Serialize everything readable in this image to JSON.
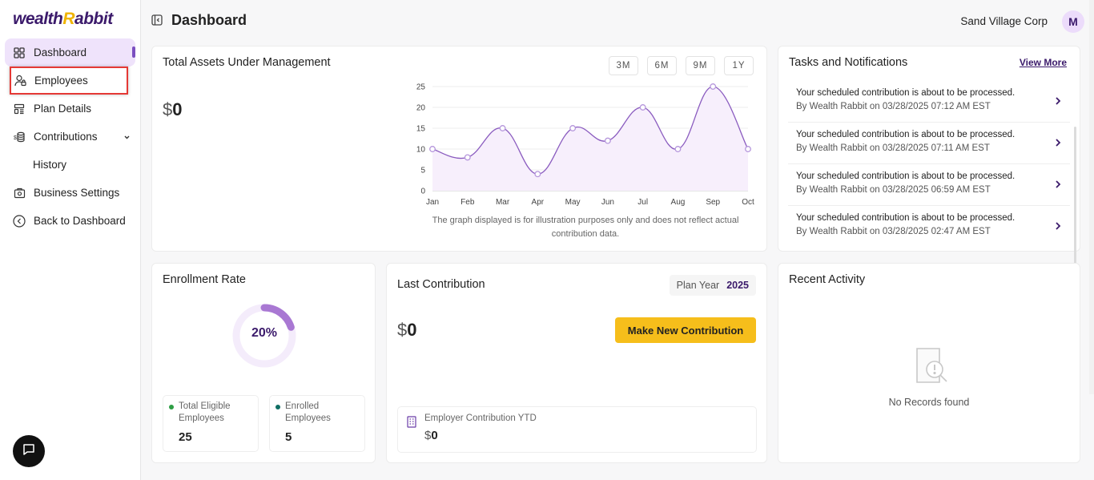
{
  "brand": {
    "logo_left": "wealth",
    "logo_mid": "R",
    "logo_right": "abbit",
    "accent_color": "#f0b400",
    "primary_color": "#3b1a6b"
  },
  "sidebar": {
    "items": [
      {
        "label": "Dashboard",
        "icon": "dashboard-icon",
        "active": true
      },
      {
        "label": "Employees",
        "icon": "employees-icon"
      },
      {
        "label": "Plan Details",
        "icon": "plan-details-icon"
      },
      {
        "label": "Contributions",
        "icon": "contributions-icon",
        "expandable": true
      },
      {
        "label": "History",
        "sub": true
      },
      {
        "label": "Business Settings",
        "icon": "business-settings-icon"
      },
      {
        "label": "Back to Dashboard",
        "icon": "back-icon"
      }
    ]
  },
  "header": {
    "title": "Dashboard",
    "company": "Sand Village Corp",
    "avatar_initial": "M"
  },
  "assets": {
    "title": "Total Assets Under Management",
    "currency": "$",
    "amount": "0",
    "ranges": [
      "3M",
      "6M",
      "9M",
      "1Y"
    ],
    "note": "The graph displayed is for illustration purposes only and does not reflect actual contribution data."
  },
  "chart_data": {
    "type": "area",
    "categories": [
      "Jan",
      "Feb",
      "Mar",
      "Apr",
      "May",
      "Jun",
      "Jul",
      "Aug",
      "Sep",
      "Oct"
    ],
    "values": [
      10,
      8,
      15,
      4,
      15,
      12,
      20,
      10,
      25,
      10
    ],
    "yticks": [
      0,
      5,
      10,
      15,
      20,
      25
    ],
    "ylim": [
      0,
      25
    ],
    "line_color": "#8a5bbf",
    "fill_color": "#f7effc"
  },
  "tasks": {
    "title": "Tasks and Notifications",
    "view_more": "View More",
    "items": [
      {
        "text": "Your scheduled contribution is about to be processed.",
        "meta": "By Wealth Rabbit on 03/28/2025 07:12 AM EST"
      },
      {
        "text": "Your scheduled contribution is about to be processed.",
        "meta": "By Wealth Rabbit on 03/28/2025 07:11 AM EST"
      },
      {
        "text": "Your scheduled contribution is about to be processed.",
        "meta": "By Wealth Rabbit on 03/28/2025 06:59 AM EST"
      },
      {
        "text": "Your scheduled contribution is about to be processed.",
        "meta": "By Wealth Rabbit on 03/28/2025 02:47 AM EST"
      }
    ]
  },
  "enrollment": {
    "title": "Enrollment Rate",
    "rate_label": "20%",
    "rate": 0.2,
    "eligible_label": "Total Eligible Employees",
    "eligible_value": "25",
    "eligible_color": "#2e9e44",
    "enrolled_label": "Enrolled Employees",
    "enrolled_value": "5",
    "enrolled_color": "#0f6e63"
  },
  "last_contribution": {
    "title": "Last Contribution",
    "plan_year_label": "Plan Year",
    "plan_year": "2025",
    "currency": "$",
    "amount": "0",
    "button": "Make New Contribution",
    "ytd_label": "Employer Contribution YTD",
    "ytd_currency": "$",
    "ytd_amount": "0"
  },
  "recent": {
    "title": "Recent Activity",
    "empty": "No Records found"
  }
}
